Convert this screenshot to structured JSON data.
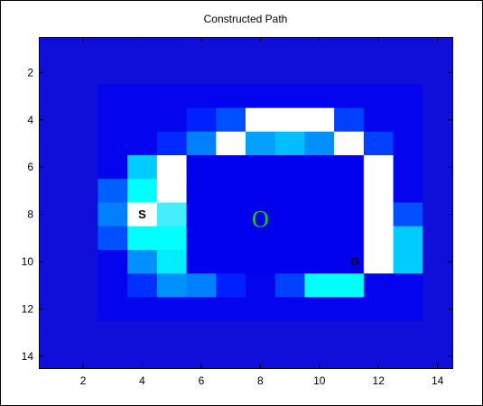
{
  "chart_data": {
    "type": "heatmap",
    "title": "Constructed Path",
    "xlabel": "",
    "ylabel": "",
    "x_range": [
      0.5,
      14.5
    ],
    "y_range": [
      0.5,
      14.5
    ],
    "y_reversed": true,
    "x_ticks": [
      2,
      4,
      6,
      8,
      10,
      12,
      14
    ],
    "y_ticks": [
      2,
      4,
      6,
      8,
      10,
      12,
      14
    ],
    "grid": false,
    "colormap": "jet",
    "background_color": "#0f0fd9",
    "rows": [
      [
        "#0f0fd9",
        "#0f0fd9",
        "#0f0fd9",
        "#0f0fd9",
        "#0f0fd9",
        "#0f0fd9",
        "#0f0fd9",
        "#0f0fd9",
        "#0f0fd9",
        "#0f0fd9",
        "#0f0fd9",
        "#0f0fd9",
        "#0f0fd9",
        "#0f0fd9"
      ],
      [
        "#0f0fd9",
        "#0f0fd9",
        "#0f0fd9",
        "#0f0fd9",
        "#0f0fd9",
        "#0f0fd9",
        "#0f0fd9",
        "#0f0fd9",
        "#0f0fd9",
        "#0f0fd9",
        "#0f0fd9",
        "#0f0fd9",
        "#0f0fd9",
        "#0f0fd9"
      ],
      [
        "#0f0fd9",
        "#0f0fd9",
        "#0404ee",
        "#0404ee",
        "#0404ee",
        "#0404ee",
        "#0404ee",
        "#0404ee",
        "#0404ee",
        "#0404ee",
        "#0404ee",
        "#0404ee",
        "#0404ee",
        "#0f0fd9"
      ],
      [
        "#0f0fd9",
        "#0f0fd9",
        "#0404ee",
        "#0404ee",
        "#0404ee",
        "#0020ff",
        "#0050ff",
        "#ffffff",
        "#ffffff",
        "#ffffff",
        "#0040ff",
        "#0404ee",
        "#0404ee",
        "#0f0fd9"
      ],
      [
        "#0f0fd9",
        "#0f0fd9",
        "#0404ee",
        "#0404ee",
        "#0028ff",
        "#0080ff",
        "#ffffff",
        "#00a0ff",
        "#00bfff",
        "#0090ff",
        "#ffffff",
        "#0040ff",
        "#0404ee",
        "#0f0fd9"
      ],
      [
        "#0f0fd9",
        "#0f0fd9",
        "#0404ee",
        "#00ccff",
        "#ffffff",
        "#0000ee",
        "#0000ee",
        "#0000ee",
        "#0000ee",
        "#0000ee",
        "#0000ee",
        "#ffffff",
        "#0404ee",
        "#0f0fd9"
      ],
      [
        "#0f0fd9",
        "#0f0fd9",
        "#0060ff",
        "#00ffff",
        "#ffffff",
        "#0000ee",
        "#0000ee",
        "#0000ee",
        "#0000ee",
        "#0000ee",
        "#0000ee",
        "#ffffff",
        "#0404ee",
        "#0f0fd9"
      ],
      [
        "#0f0fd9",
        "#0f0fd9",
        "#0080ff",
        "#ffffff",
        "#44eeff",
        "#0000ee",
        "#0000ee",
        "#0000ee",
        "#0000ee",
        "#0000ee",
        "#0000ee",
        "#ffffff",
        "#0050ff",
        "#0f0fd9"
      ],
      [
        "#0f0fd9",
        "#0f0fd9",
        "#0050ff",
        "#00ffff",
        "#00ffff",
        "#0000ee",
        "#0000ee",
        "#0000ee",
        "#0000ee",
        "#0000ee",
        "#0000ee",
        "#ffffff",
        "#00ccff",
        "#0f0fd9"
      ],
      [
        "#0f0fd9",
        "#0f0fd9",
        "#0404ee",
        "#0090ff",
        "#00eeff",
        "#0000ee",
        "#0000ee",
        "#0000ee",
        "#0000ee",
        "#0000ee",
        "#0000ee",
        "#ffffff",
        "#00ccff",
        "#0f0fd9"
      ],
      [
        "#0f0fd9",
        "#0f0fd9",
        "#0404ee",
        "#0030ff",
        "#0090ff",
        "#0080ff",
        "#0020ff",
        "#0404ee",
        "#0040ff",
        "#00ffff",
        "#00ffff",
        "#0404ee",
        "#0404ee",
        "#0f0fd9"
      ],
      [
        "#0f0fd9",
        "#0f0fd9",
        "#0404ee",
        "#0404ee",
        "#0404ee",
        "#0404ee",
        "#0404ee",
        "#0404ee",
        "#0404ee",
        "#0404ee",
        "#0404ee",
        "#0404ee",
        "#0404ee",
        "#0f0fd9"
      ],
      [
        "#0f0fd9",
        "#0f0fd9",
        "#0f0fd9",
        "#0f0fd9",
        "#0f0fd9",
        "#0f0fd9",
        "#0f0fd9",
        "#0f0fd9",
        "#0f0fd9",
        "#0f0fd9",
        "#0f0fd9",
        "#0f0fd9",
        "#0f0fd9",
        "#0f0fd9"
      ],
      [
        "#0f0fd9",
        "#0f0fd9",
        "#0f0fd9",
        "#0f0fd9",
        "#0f0fd9",
        "#0f0fd9",
        "#0f0fd9",
        "#0f0fd9",
        "#0f0fd9",
        "#0f0fd9",
        "#0f0fd9",
        "#0f0fd9",
        "#0f0fd9",
        "#0f0fd9"
      ]
    ],
    "annotations": [
      {
        "name": "start",
        "text": "S",
        "x": 4,
        "y": 8
      },
      {
        "name": "goal",
        "text": "G",
        "x": 11.2,
        "y": 10
      },
      {
        "name": "obstacle",
        "text": "O",
        "x": 8,
        "y": 8.2,
        "color": "#22c422"
      }
    ]
  }
}
